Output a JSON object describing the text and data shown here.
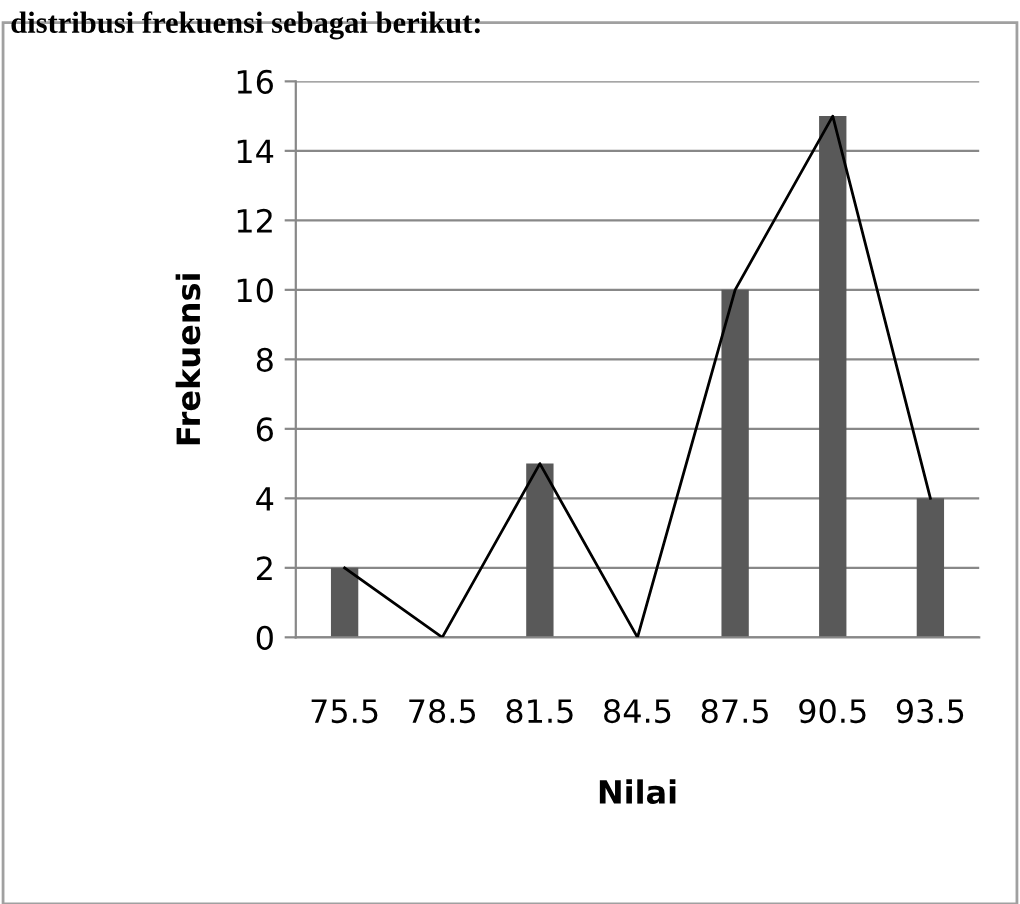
{
  "chart_data": {
    "type": "bar",
    "xlabel": "Nilai",
    "ylabel": "Frekuensi",
    "annotations": [
      "distribusi frekuensi sebagai berikut:"
    ],
    "categories": [
      "75.5",
      "78.5",
      "81.5",
      "84.5",
      "87.5",
      "90.5",
      "93.5"
    ],
    "series": [
      {
        "color": "#595959",
        "values": [
          2,
          0,
          5,
          0,
          10,
          15,
          4
        ]
      },
      {
        "type": "line",
        "color": "#000000",
        "values": [
          2,
          0,
          5,
          0,
          10,
          15,
          4
        ]
      }
    ],
    "ylim": [
      0,
      16
    ],
    "yticks": [
      0,
      2,
      4,
      6,
      8,
      10,
      12,
      14,
      16
    ],
    "grid": "y",
    "legend": false
  }
}
